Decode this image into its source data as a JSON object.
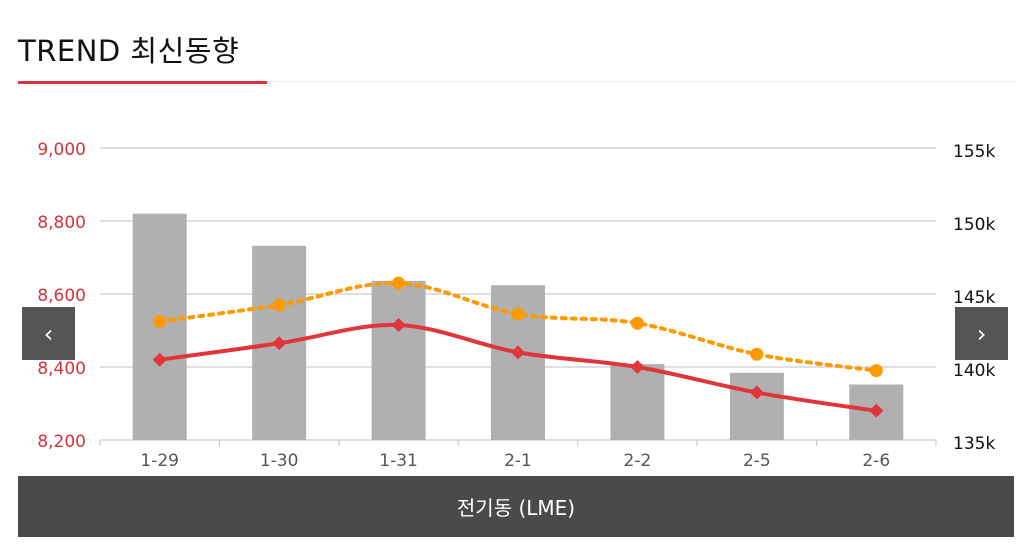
{
  "header": {
    "title": "TREND 최신동향"
  },
  "nav": {
    "prev_label": "‹",
    "next_label": "›",
    "prev_icon": "chevron-left-icon",
    "next_icon": "chevron-right-icon"
  },
  "footer": {
    "label": "전기동 (LME)"
  },
  "colors": {
    "accent": "#d9323a",
    "bar": "#b0b0b0",
    "orange": "#ff9900",
    "red_line": "#e0353a",
    "footer_bg": "#4a4a4a"
  },
  "chart_data": {
    "type": "bar",
    "title": "",
    "xlabel": "",
    "ylabel": "",
    "categories": [
      "1-29",
      "1-30",
      "1-31",
      "2-1",
      "2-2",
      "2-5",
      "2-6"
    ],
    "ylim_left": [
      8200,
      9000
    ],
    "yticks_left": [
      "9,000",
      "8,800",
      "8,600",
      "8,400",
      "8,200"
    ],
    "ylim_right": [
      135000,
      155000
    ],
    "yticks_right": [
      "155k",
      "150k",
      "145k",
      "140k",
      "135k"
    ],
    "grid": true,
    "legend": "none",
    "series": [
      {
        "type": "bar",
        "axis": "right",
        "color": "#b0b0b0",
        "values": [
          150500,
          148300,
          145900,
          145600,
          140200,
          139600,
          138800
        ]
      },
      {
        "type": "line",
        "axis": "left",
        "color": "#e0353a",
        "marker": "diamond",
        "style": "solid",
        "values": [
          8420,
          8465,
          8515,
          8440,
          8400,
          8330,
          8280
        ]
      },
      {
        "type": "line",
        "axis": "left",
        "color": "#ff9900",
        "marker": "circle",
        "style": "dotted",
        "values": [
          8525,
          8570,
          8630,
          8545,
          8520,
          8435,
          8390
        ]
      }
    ]
  }
}
